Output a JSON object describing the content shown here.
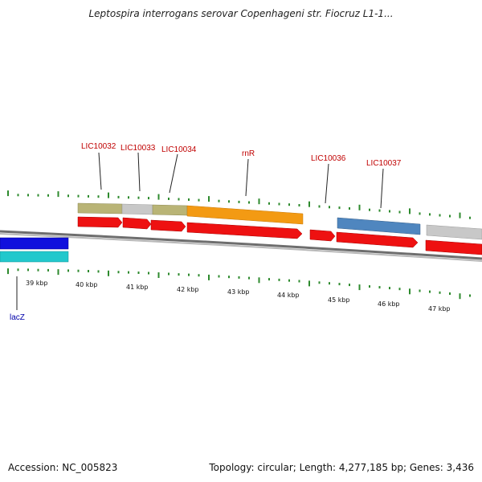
{
  "title": "Leptospira interrogans serovar Copenhageni str. Fiocruz L1-1...",
  "footer": {
    "accession": "Accession: NC_005823",
    "summary": "Topology: circular; Length: 4,277,185 bp; Genes: 3,436"
  },
  "colors": {
    "backbone": "#7a7a7a",
    "cds": "#ee1111",
    "tick": "#2d8a2d",
    "olive": "#b9b476",
    "gray": "#c8c8c8",
    "orange": "#f39a13",
    "steelblue": "#4f86bf",
    "blue": "#1010dd",
    "cyan": "#22c8cc"
  },
  "genes": [
    {
      "name": "LIC10032",
      "type": "olive"
    },
    {
      "name": "LIC10033",
      "type": "gray"
    },
    {
      "name": "LIC10034",
      "type": "olive"
    },
    {
      "name": "rnR",
      "type": "orange"
    },
    {
      "name": "LIC10036",
      "type": "none"
    },
    {
      "name": "LIC10037",
      "type": "steelblue"
    },
    {
      "name": "lacZ",
      "type": "blue"
    }
  ],
  "kbp_labels": [
    "39 kbp",
    "40 kbp",
    "41 kbp",
    "42 kbp",
    "43 kbp",
    "44 kbp",
    "45 kbp",
    "46 kbp",
    "47 kbp"
  ]
}
